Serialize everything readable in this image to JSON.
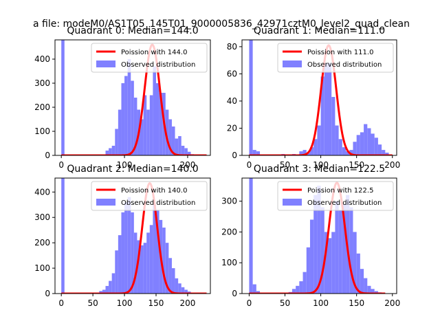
{
  "figure": {
    "suptitle": "a file: modeM0/AS1T05_145T01_9000005836_42971cztM0_level2_quad_clean"
  },
  "colors": {
    "poisson": "#ff0000",
    "observed": "#8080ff",
    "axis": "#000000"
  },
  "chart_data": [
    {
      "type": "bar",
      "title": "Quadrant 0: Median=144.0",
      "median": 144.0,
      "xlim": [
        -10,
        236
      ],
      "ylim": [
        0,
        480
      ],
      "xticks": [
        0,
        100,
        200
      ],
      "yticks": [
        0,
        100,
        200,
        300,
        400
      ],
      "legend_position": "top-right",
      "legend": [
        "Poission with 144.0",
        "Observed distribution"
      ],
      "series": [
        {
          "name": "Observed distribution",
          "type": "histogram",
          "bin_width": 5,
          "bins": [
            {
              "x": 0,
              "y": 480
            },
            {
              "x": 5,
              "y": 4
            },
            {
              "x": 65,
              "y": 4
            },
            {
              "x": 70,
              "y": 20
            },
            {
              "x": 75,
              "y": 30
            },
            {
              "x": 80,
              "y": 40
            },
            {
              "x": 85,
              "y": 110
            },
            {
              "x": 90,
              "y": 190
            },
            {
              "x": 95,
              "y": 300
            },
            {
              "x": 100,
              "y": 330
            },
            {
              "x": 105,
              "y": 400
            },
            {
              "x": 110,
              "y": 310
            },
            {
              "x": 115,
              "y": 240
            },
            {
              "x": 120,
              "y": 190
            },
            {
              "x": 125,
              "y": 150
            },
            {
              "x": 130,
              "y": 250
            },
            {
              "x": 135,
              "y": 190
            },
            {
              "x": 140,
              "y": 250
            },
            {
              "x": 145,
              "y": 370
            },
            {
              "x": 150,
              "y": 300
            },
            {
              "x": 155,
              "y": 260
            },
            {
              "x": 160,
              "y": 260
            },
            {
              "x": 165,
              "y": 190
            },
            {
              "x": 170,
              "y": 150
            },
            {
              "x": 175,
              "y": 120
            },
            {
              "x": 180,
              "y": 70
            },
            {
              "x": 185,
              "y": 80
            },
            {
              "x": 190,
              "y": 40
            },
            {
              "x": 195,
              "y": 30
            },
            {
              "x": 200,
              "y": 15
            },
            {
              "x": 205,
              "y": 5
            },
            {
              "x": 210,
              "y": 3
            }
          ]
        },
        {
          "name": "Poission with 144.0",
          "type": "line",
          "lambda": 144.0,
          "peak": 460,
          "x_range": [
            0,
            230
          ]
        }
      ]
    },
    {
      "type": "bar",
      "title": "Quadrant 1: Median=111.0",
      "median": 111.0,
      "xlim": [
        -10,
        206
      ],
      "ylim": [
        0,
        85
      ],
      "xticks": [
        0,
        50,
        100,
        150,
        200
      ],
      "yticks": [
        0,
        20,
        40,
        60,
        80
      ],
      "legend_position": "top-right",
      "legend": [
        "Poission with 111.0",
        "Observed distribution"
      ],
      "series": [
        {
          "name": "Observed distribution",
          "type": "histogram",
          "bin_width": 5,
          "bins": [
            {
              "x": 0,
              "y": 85
            },
            {
              "x": 5,
              "y": 4
            },
            {
              "x": 10,
              "y": 3
            },
            {
              "x": 45,
              "y": 1
            },
            {
              "x": 60,
              "y": 1
            },
            {
              "x": 70,
              "y": 3
            },
            {
              "x": 75,
              "y": 4
            },
            {
              "x": 80,
              "y": 2
            },
            {
              "x": 85,
              "y": 6
            },
            {
              "x": 90,
              "y": 12
            },
            {
              "x": 95,
              "y": 22
            },
            {
              "x": 100,
              "y": 58
            },
            {
              "x": 105,
              "y": 68
            },
            {
              "x": 110,
              "y": 68
            },
            {
              "x": 115,
              "y": 43
            },
            {
              "x": 120,
              "y": 22
            },
            {
              "x": 125,
              "y": 12
            },
            {
              "x": 130,
              "y": 6
            },
            {
              "x": 135,
              "y": 3
            },
            {
              "x": 140,
              "y": 4
            },
            {
              "x": 145,
              "y": 10
            },
            {
              "x": 150,
              "y": 15
            },
            {
              "x": 155,
              "y": 17
            },
            {
              "x": 160,
              "y": 23
            },
            {
              "x": 165,
              "y": 20
            },
            {
              "x": 170,
              "y": 16
            },
            {
              "x": 175,
              "y": 13
            },
            {
              "x": 180,
              "y": 8
            },
            {
              "x": 185,
              "y": 4
            },
            {
              "x": 190,
              "y": 2
            }
          ]
        },
        {
          "name": "Poission with 111.0",
          "type": "line",
          "lambda": 111.0,
          "peak": 81,
          "x_range": [
            0,
            200
          ]
        }
      ]
    },
    {
      "type": "bar",
      "title": "Quadrant 2: Median=140.0",
      "median": 140.0,
      "xlim": [
        -10,
        236
      ],
      "ylim": [
        0,
        455
      ],
      "xticks": [
        0,
        50,
        100,
        150,
        200
      ],
      "yticks": [
        0,
        100,
        200,
        300,
        400
      ],
      "legend_position": "top-right",
      "legend": [
        "Poission with 140.0",
        "Observed distribution"
      ],
      "series": [
        {
          "name": "Observed distribution",
          "type": "histogram",
          "bin_width": 5,
          "bins": [
            {
              "x": 0,
              "y": 455
            },
            {
              "x": 5,
              "y": 3
            },
            {
              "x": 60,
              "y": 10
            },
            {
              "x": 65,
              "y": 15
            },
            {
              "x": 70,
              "y": 30
            },
            {
              "x": 75,
              "y": 50
            },
            {
              "x": 80,
              "y": 80
            },
            {
              "x": 85,
              "y": 170
            },
            {
              "x": 90,
              "y": 230
            },
            {
              "x": 95,
              "y": 320
            },
            {
              "x": 100,
              "y": 360
            },
            {
              "x": 105,
              "y": 380
            },
            {
              "x": 110,
              "y": 320
            },
            {
              "x": 115,
              "y": 240
            },
            {
              "x": 120,
              "y": 210
            },
            {
              "x": 125,
              "y": 190
            },
            {
              "x": 130,
              "y": 200
            },
            {
              "x": 135,
              "y": 240
            },
            {
              "x": 140,
              "y": 270
            },
            {
              "x": 145,
              "y": 350
            },
            {
              "x": 150,
              "y": 330
            },
            {
              "x": 155,
              "y": 290
            },
            {
              "x": 160,
              "y": 260
            },
            {
              "x": 165,
              "y": 200
            },
            {
              "x": 170,
              "y": 140
            },
            {
              "x": 175,
              "y": 100
            },
            {
              "x": 180,
              "y": 60
            },
            {
              "x": 185,
              "y": 40
            },
            {
              "x": 190,
              "y": 25
            },
            {
              "x": 195,
              "y": 15
            },
            {
              "x": 200,
              "y": 8
            },
            {
              "x": 205,
              "y": 4
            }
          ]
        },
        {
          "name": "Poission with 140.0",
          "type": "line",
          "lambda": 140.0,
          "peak": 435,
          "x_range": [
            0,
            230
          ]
        }
      ]
    },
    {
      "type": "bar",
      "title": "Quadrant 3: Median=122.5",
      "median": 122.5,
      "xlim": [
        -10,
        206
      ],
      "ylim": [
        0,
        375
      ],
      "xticks": [
        0,
        50,
        100,
        150,
        200
      ],
      "yticks": [
        0,
        100,
        200,
        300
      ],
      "legend_position": "top-right",
      "legend": [
        "Poission with 122.5",
        "Observed distribution"
      ],
      "series": [
        {
          "name": "Observed distribution",
          "type": "histogram",
          "bin_width": 5,
          "bins": [
            {
              "x": 0,
              "y": 375
            },
            {
              "x": 5,
              "y": 30
            },
            {
              "x": 10,
              "y": 8
            },
            {
              "x": 55,
              "y": 5
            },
            {
              "x": 60,
              "y": 15
            },
            {
              "x": 65,
              "y": 25
            },
            {
              "x": 70,
              "y": 40
            },
            {
              "x": 75,
              "y": 70
            },
            {
              "x": 80,
              "y": 150
            },
            {
              "x": 85,
              "y": 240
            },
            {
              "x": 90,
              "y": 320
            },
            {
              "x": 95,
              "y": 350
            },
            {
              "x": 100,
              "y": 280
            },
            {
              "x": 105,
              "y": 200
            },
            {
              "x": 110,
              "y": 180
            },
            {
              "x": 115,
              "y": 200
            },
            {
              "x": 120,
              "y": 300
            },
            {
              "x": 125,
              "y": 270
            },
            {
              "x": 130,
              "y": 290
            },
            {
              "x": 135,
              "y": 320
            },
            {
              "x": 140,
              "y": 280
            },
            {
              "x": 145,
              "y": 200
            },
            {
              "x": 150,
              "y": 130
            },
            {
              "x": 155,
              "y": 80
            },
            {
              "x": 160,
              "y": 50
            },
            {
              "x": 165,
              "y": 25
            },
            {
              "x": 170,
              "y": 15
            },
            {
              "x": 175,
              "y": 8
            },
            {
              "x": 180,
              "y": 4
            }
          ]
        },
        {
          "name": "Poission with 122.5",
          "type": "line",
          "lambda": 122.5,
          "peak": 360,
          "x_range": [
            0,
            190
          ]
        }
      ]
    }
  ]
}
